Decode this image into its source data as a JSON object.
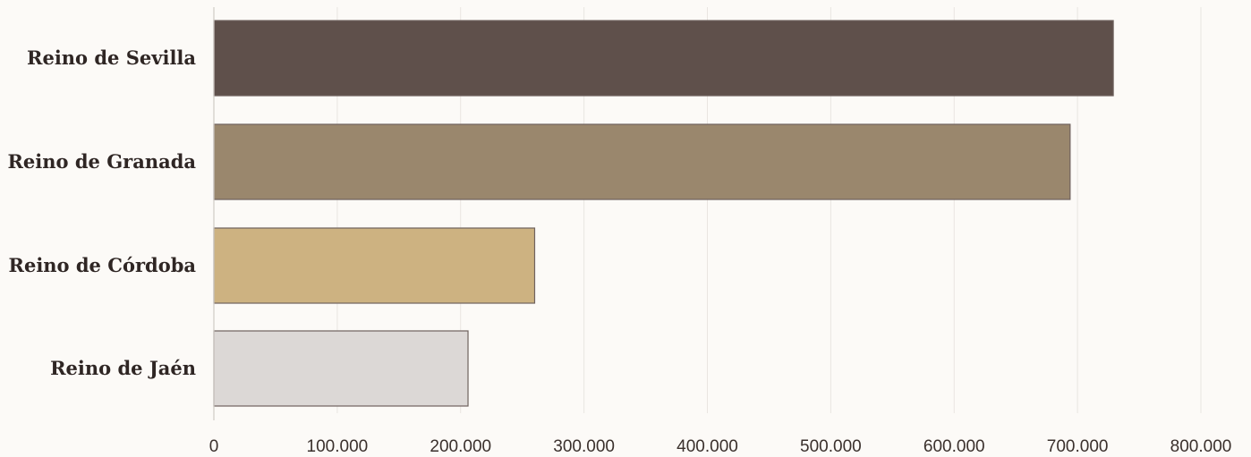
{
  "chart_data": {
    "type": "bar",
    "orientation": "horizontal",
    "title": "",
    "xlabel": "",
    "ylabel": "",
    "categories": [
      "Reino de Sevilla",
      "Reino de Granada",
      "Reino de Córdoba",
      "Reino de Jaén"
    ],
    "values": [
      729000,
      694000,
      260000,
      206000
    ],
    "colors": [
      "#5f504b",
      "#9a876d",
      "#cdb281",
      "#dcd8d6"
    ],
    "bar_edge_color": "#6f625e",
    "xlim": [
      0,
      800000
    ],
    "xticks": [
      0,
      100000,
      200000,
      300000,
      400000,
      500000,
      600000,
      700000,
      800000
    ],
    "xtick_labels": [
      "0",
      "100.000",
      "200.000",
      "300.000",
      "400.000",
      "500.000",
      "600.000",
      "700.000",
      "800.000"
    ],
    "grid": true,
    "legend": "none"
  }
}
